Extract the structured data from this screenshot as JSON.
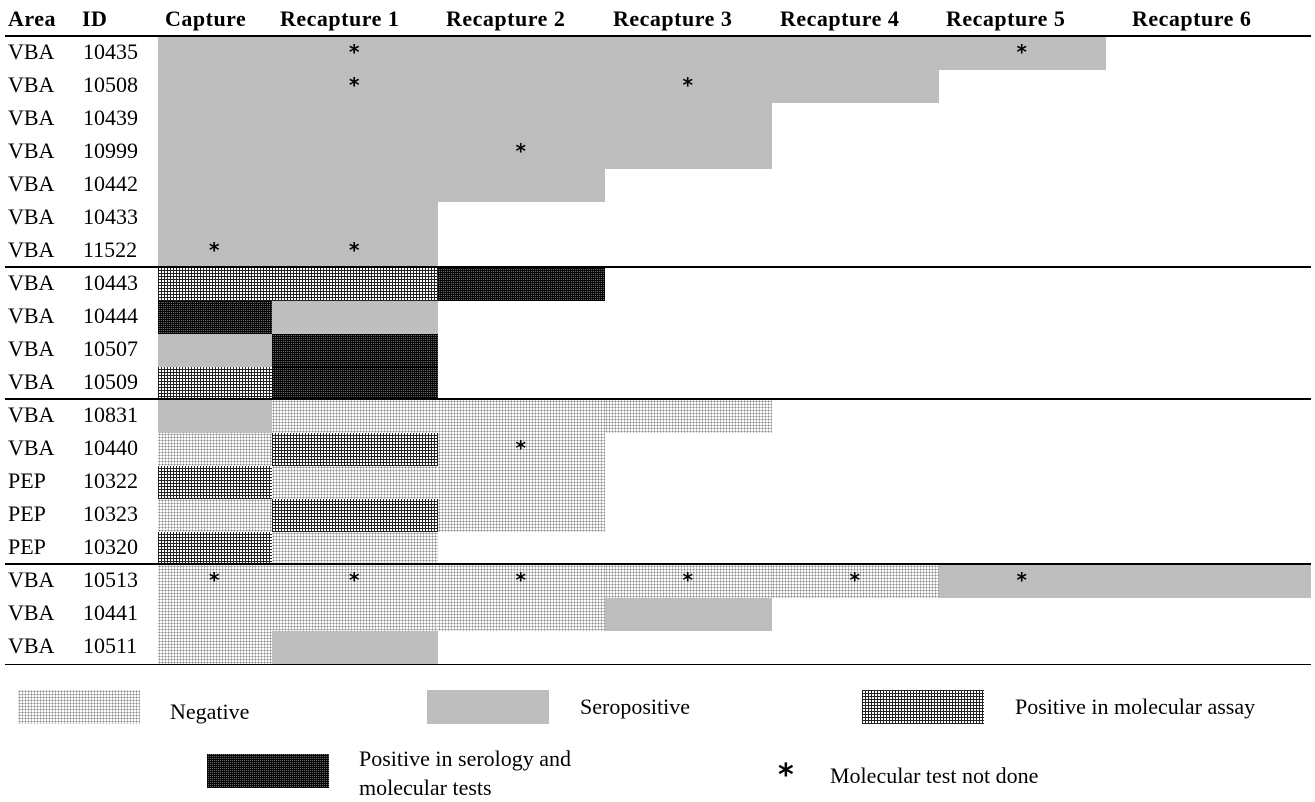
{
  "header": {
    "area": "Area",
    "id": "ID",
    "periods": [
      "Capture",
      "Recapture 1",
      "Recapture 2",
      "Recapture 3",
      "Recapture 4",
      "Recapture 5",
      "Recapture 6"
    ]
  },
  "groups": [
    {
      "rows": [
        {
          "area": "VBA",
          "id": "10435",
          "status": [
            "sero",
            "sero",
            "sero",
            "sero",
            "sero",
            "sero"
          ],
          "stars": [
            1,
            5
          ]
        },
        {
          "area": "VBA",
          "id": "10508",
          "status": [
            "sero",
            "sero",
            "sero",
            "sero",
            "sero"
          ],
          "stars": [
            1,
            3
          ]
        },
        {
          "area": "VBA",
          "id": "10439",
          "status": [
            "sero",
            "sero",
            "sero",
            "sero"
          ],
          "stars": []
        },
        {
          "area": "VBA",
          "id": "10999",
          "status": [
            "sero",
            "sero",
            "sero",
            "sero"
          ],
          "stars": [
            2
          ]
        },
        {
          "area": "VBA",
          "id": "10442",
          "status": [
            "sero",
            "sero",
            "sero"
          ],
          "stars": []
        },
        {
          "area": "VBA",
          "id": "10433",
          "status": [
            "sero",
            "sero"
          ],
          "stars": []
        },
        {
          "area": "VBA",
          "id": "11522",
          "status": [
            "sero",
            "sero"
          ],
          "stars": [
            0,
            1
          ]
        }
      ]
    },
    {
      "rows": [
        {
          "area": "VBA",
          "id": "10443",
          "status": [
            "mol",
            "mol",
            "both"
          ],
          "stars": []
        },
        {
          "area": "VBA",
          "id": "10444",
          "status": [
            "both",
            "sero"
          ],
          "stars": []
        },
        {
          "area": "VBA",
          "id": "10507",
          "status": [
            "sero",
            "both"
          ],
          "stars": []
        },
        {
          "area": "VBA",
          "id": "10509",
          "status": [
            "mol",
            "both"
          ],
          "stars": []
        }
      ]
    },
    {
      "rows": [
        {
          "area": "VBA",
          "id": "10831",
          "status": [
            "sero",
            "neg",
            "neg",
            "neg"
          ],
          "stars": []
        },
        {
          "area": "VBA",
          "id": "10440",
          "status": [
            "neg",
            "mol",
            "neg"
          ],
          "stars": [
            2
          ]
        },
        {
          "area": "PEP",
          "id": "10322",
          "status": [
            "mol",
            "neg",
            "neg"
          ],
          "stars": []
        },
        {
          "area": "PEP",
          "id": "10323",
          "status": [
            "neg",
            "mol",
            "neg"
          ],
          "stars": []
        },
        {
          "area": "PEP",
          "id": "10320",
          "status": [
            "mol",
            "neg"
          ],
          "stars": []
        }
      ]
    },
    {
      "rows": [
        {
          "area": "VBA",
          "id": "10513",
          "status": [
            "neg",
            "neg",
            "neg",
            "neg",
            "neg",
            "sero",
            "sero"
          ],
          "stars": [
            0,
            1,
            2,
            3,
            4,
            5
          ]
        },
        {
          "area": "VBA",
          "id": "10441",
          "status": [
            "neg",
            "neg",
            "neg",
            "sero"
          ],
          "stars": []
        },
        {
          "area": "VBA",
          "id": "10511",
          "status": [
            "neg",
            "sero"
          ],
          "stars": []
        }
      ]
    }
  ],
  "star_symbol": "*",
  "legend": {
    "negative": "Negative",
    "seropositive": "Seropositive",
    "molecular": "Positive in molecular assay",
    "both_line1": "Positive in serology and",
    "both_line2": "molecular tests",
    "star": "*",
    "not_done": "Molecular test not done"
  }
}
